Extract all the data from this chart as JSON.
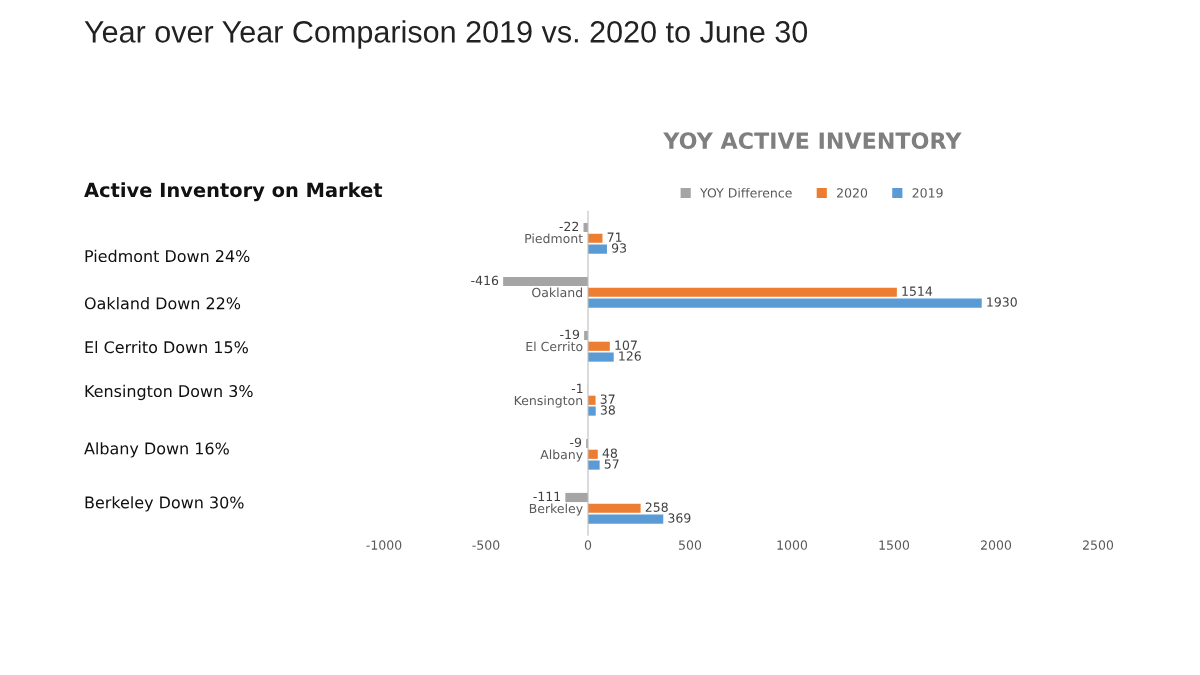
{
  "chart_data": {
    "type": "bar",
    "orientation": "horizontal",
    "title": "YOY ACTIVE INVENTORY",
    "categories": [
      "Piedmont",
      "Oakland",
      "El Cerrito",
      "Kensington",
      "Albany",
      "Berkeley"
    ],
    "series": [
      {
        "name": "YOY Difference",
        "color": "#a5a5a5",
        "values": [
          -22,
          -416,
          -19,
          -1,
          -9,
          -111
        ]
      },
      {
        "name": "2020",
        "color": "#ed7d31",
        "values": [
          71,
          1514,
          107,
          37,
          48,
          258
        ]
      },
      {
        "name": "2019",
        "color": "#5b9bd5",
        "values": [
          93,
          1930,
          126,
          38,
          57,
          369
        ]
      }
    ],
    "xlim": [
      -1000,
      2500
    ],
    "xticks": [
      -1000,
      -500,
      0,
      500,
      1000,
      1500,
      2000,
      2500
    ],
    "data_labels": true,
    "legend": "top",
    "grid": false,
    "annotations": [
      "Year over Year Comparison 2019 vs. 2020 to June 30",
      "Active Inventory on Market",
      "Piedmont Down 24%",
      "Oakland Down 22%",
      "El Cerrito Down 15%",
      "Kensington Down 3%",
      "Albany Down 16%",
      "Berkeley Down 30%"
    ]
  }
}
